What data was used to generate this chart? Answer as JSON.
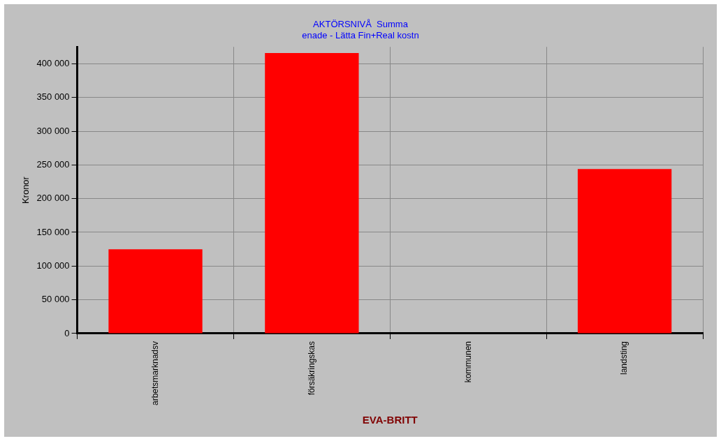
{
  "chart_data": {
    "type": "bar",
    "title": [
      "AKTÖRSNIVÅ  Summa",
      "enade - Lätta Fin+Real kostn"
    ],
    "xlabel": "EVA-BRITT",
    "ylabel": "Kronor",
    "categories": [
      "arbetsmarknadsv",
      "försäkringskas",
      "kommunen",
      "landsting"
    ],
    "values": [
      125000,
      416000,
      0,
      244000
    ],
    "color": "#ff0000",
    "ylim": [
      0,
      425000
    ],
    "yticks": [
      0,
      {
        "value": 50000,
        "label": "50 000"
      },
      {
        "value": 100000,
        "label": "100 000"
      },
      {
        "value": 150000,
        "label": "150 000"
      },
      {
        "value": 200000,
        "label": "200 000"
      },
      {
        "value": 250000,
        "label": "250 000"
      },
      {
        "value": 300000,
        "label": "300 000"
      },
      {
        "value": 350000,
        "label": "350 000"
      },
      {
        "value": 400000,
        "label": "400 000"
      }
    ],
    "grid": true,
    "legend": false
  }
}
